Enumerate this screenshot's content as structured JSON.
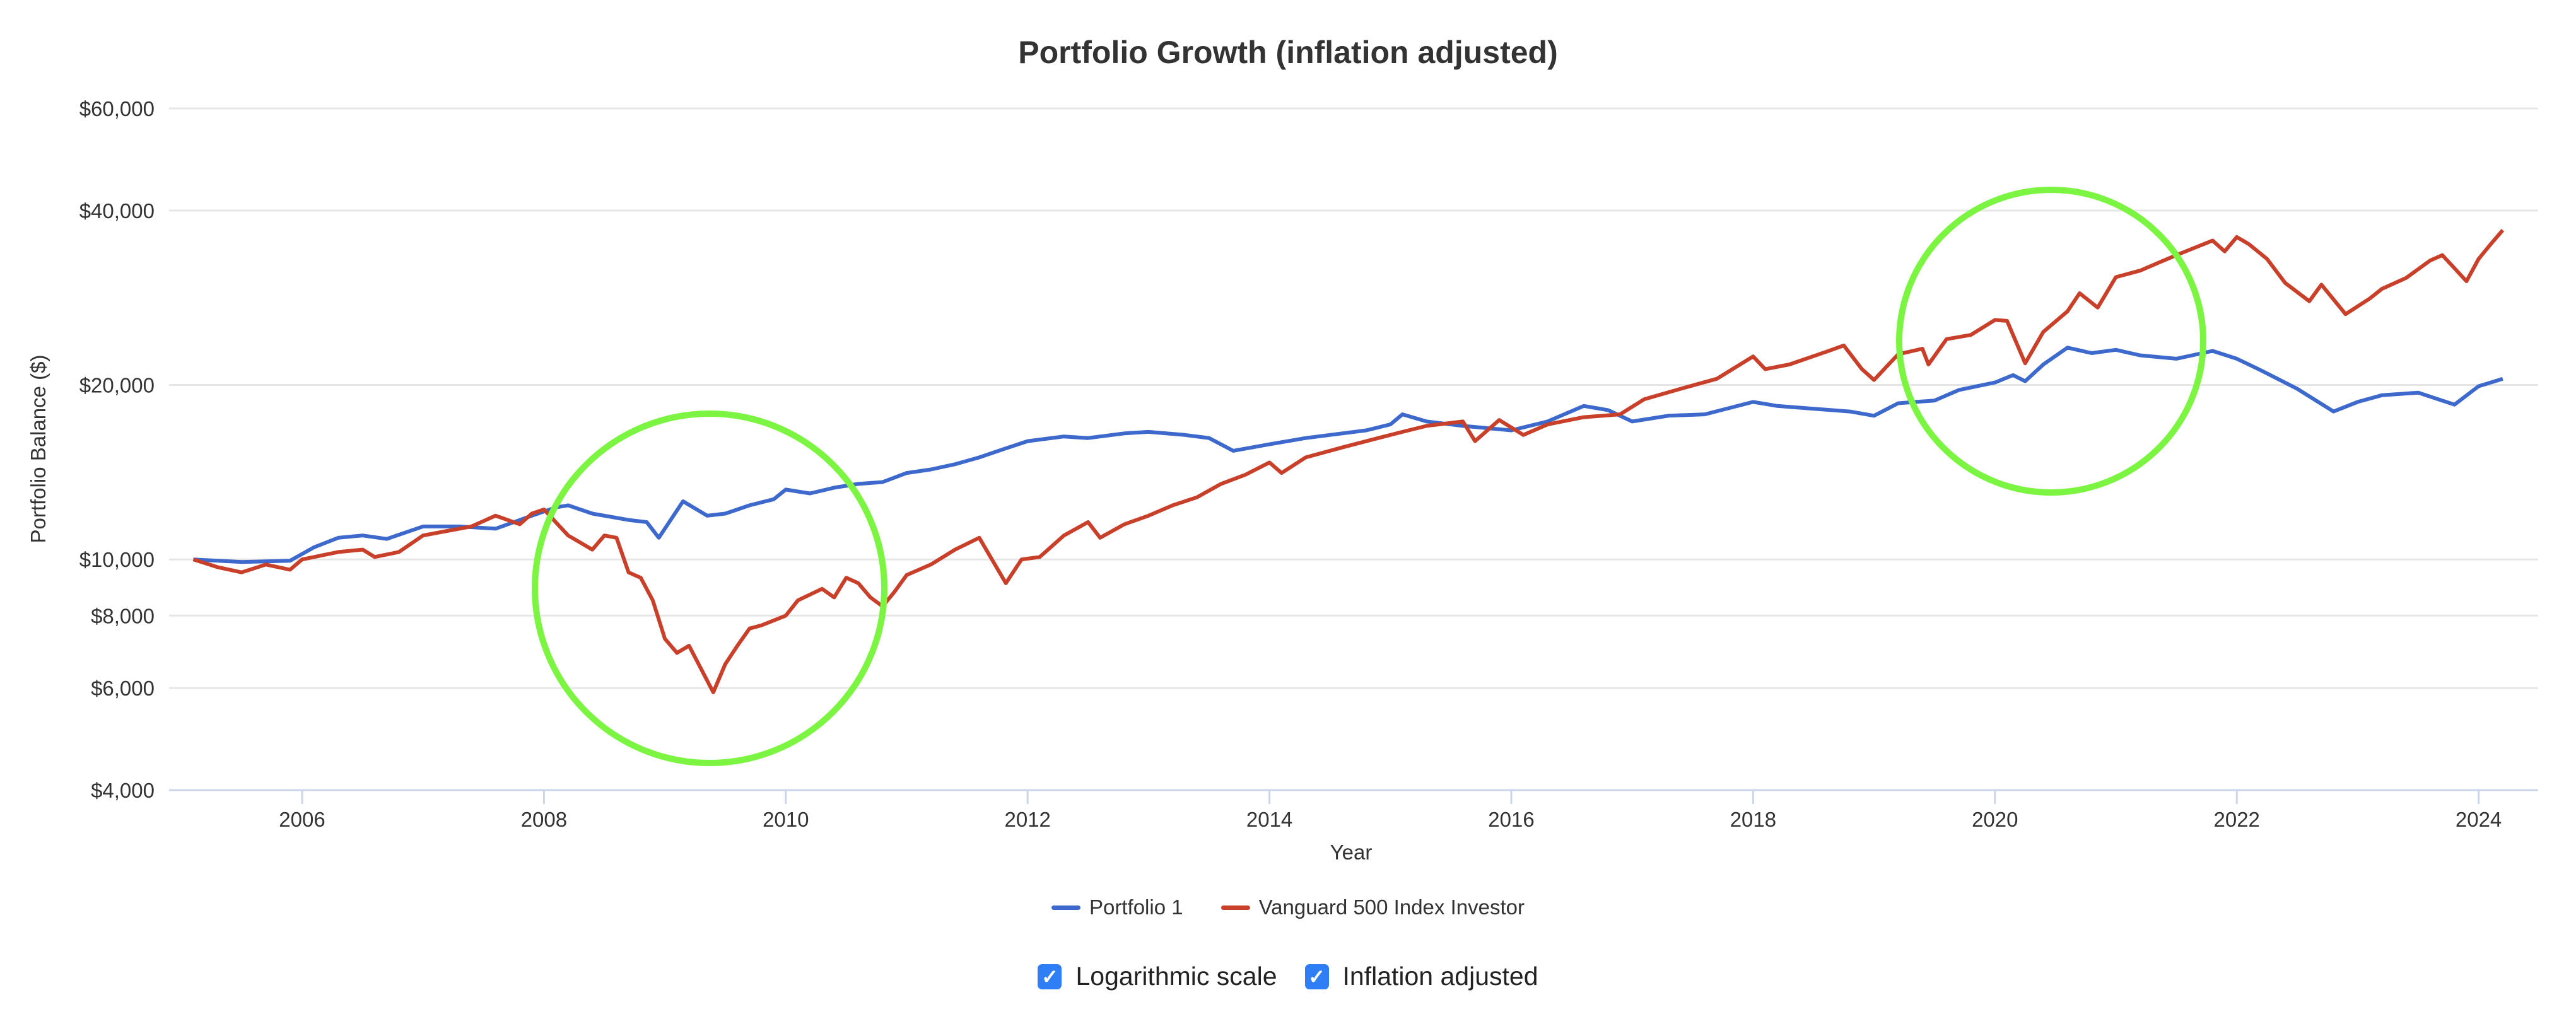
{
  "chart_data": {
    "type": "line",
    "title": "Portfolio Growth (inflation adjusted)",
    "xlabel": "Year",
    "ylabel": "Portfolio Balance ($)",
    "yscale": "log",
    "ylim": [
      4000,
      60000
    ],
    "xlim": [
      2004.9,
      2024.35
    ],
    "yticks": [
      4000,
      6000,
      8000,
      10000,
      20000,
      40000,
      60000
    ],
    "ytick_labels": [
      "$4,000",
      "$6,000",
      "$8,000",
      "$10,000",
      "$20,000",
      "$40,000",
      "$60,000"
    ],
    "xticks": [
      2006,
      2008,
      2010,
      2012,
      2014,
      2016,
      2018,
      2020,
      2022,
      2024
    ],
    "xtick_labels": [
      "2006",
      "2008",
      "2010",
      "2012",
      "2014",
      "2016",
      "2018",
      "2020",
      "2022",
      "2024"
    ],
    "grid": true,
    "legend_position": "bottom",
    "series": [
      {
        "name": "Portfolio 1",
        "color": "#3d68cc",
        "x": [
          2005.1,
          2005.5,
          2005.9,
          2006.1,
          2006.3,
          2006.5,
          2006.7,
          2007.0,
          2007.3,
          2007.6,
          2007.9,
          2008.1,
          2008.2,
          2008.4,
          2008.7,
          2008.85,
          2008.95,
          2009.15,
          2009.35,
          2009.5,
          2009.7,
          2009.9,
          2010.0,
          2010.2,
          2010.4,
          2010.6,
          2010.8,
          2011.0,
          2011.2,
          2011.4,
          2011.6,
          2011.8,
          2012.0,
          2012.3,
          2012.5,
          2012.8,
          2013.0,
          2013.3,
          2013.5,
          2013.7,
          2014.0,
          2014.3,
          2014.5,
          2014.8,
          2015.0,
          2015.1,
          2015.3,
          2015.6,
          2016.0,
          2016.3,
          2016.6,
          2016.8,
          2017.0,
          2017.3,
          2017.6,
          2018.0,
          2018.2,
          2018.5,
          2018.8,
          2019.0,
          2019.2,
          2019.5,
          2019.7,
          2020.0,
          2020.15,
          2020.25,
          2020.4,
          2020.6,
          2020.8,
          2021.0,
          2021.2,
          2021.5,
          2021.8,
          2022.0,
          2022.2,
          2022.5,
          2022.8,
          2023.0,
          2023.2,
          2023.5,
          2023.8,
          2024.0,
          2024.2
        ],
        "values": [
          10000,
          9900,
          9950,
          10500,
          10900,
          11000,
          10850,
          11400,
          11400,
          11300,
          11900,
          12300,
          12400,
          12000,
          11700,
          11600,
          10900,
          12600,
          11900,
          12000,
          12400,
          12700,
          13200,
          13000,
          13300,
          13500,
          13600,
          14100,
          14300,
          14600,
          15000,
          15500,
          16000,
          16300,
          16200,
          16500,
          16600,
          16400,
          16200,
          15400,
          15800,
          16200,
          16400,
          16700,
          17100,
          17800,
          17300,
          17000,
          16700,
          17300,
          18400,
          18100,
          17300,
          17700,
          17800,
          18700,
          18400,
          18200,
          18000,
          17700,
          18600,
          18800,
          19600,
          20200,
          20800,
          20300,
          21700,
          23200,
          22700,
          23000,
          22500,
          22200,
          22900,
          22200,
          21200,
          19700,
          18000,
          18700,
          19200,
          19400,
          18500,
          19900,
          20500
        ]
      },
      {
        "name": "Vanguard 500 Index Investor",
        "color": "#c9402a",
        "x": [
          2005.1,
          2005.3,
          2005.5,
          2005.7,
          2005.9,
          2006.0,
          2006.3,
          2006.5,
          2006.6,
          2006.8,
          2007.0,
          2007.2,
          2007.4,
          2007.6,
          2007.8,
          2007.9,
          2008.0,
          2008.2,
          2008.4,
          2008.5,
          2008.6,
          2008.7,
          2008.8,
          2008.9,
          2009.0,
          2009.1,
          2009.2,
          2009.4,
          2009.5,
          2009.6,
          2009.7,
          2009.8,
          2010.0,
          2010.1,
          2010.3,
          2010.4,
          2010.5,
          2010.6,
          2010.7,
          2010.8,
          2010.9,
          2011.0,
          2011.2,
          2011.4,
          2011.6,
          2011.82,
          2011.95,
          2012.1,
          2012.3,
          2012.5,
          2012.6,
          2012.8,
          2013.0,
          2013.2,
          2013.4,
          2013.6,
          2013.8,
          2014.0,
          2014.1,
          2014.3,
          2014.6,
          2014.9,
          2015.1,
          2015.3,
          2015.6,
          2015.7,
          2015.9,
          2016.1,
          2016.3,
          2016.6,
          2016.9,
          2017.1,
          2017.4,
          2017.7,
          2018.0,
          2018.1,
          2018.3,
          2018.6,
          2018.75,
          2018.9,
          2019.0,
          2019.2,
          2019.4,
          2019.45,
          2019.6,
          2019.8,
          2020.0,
          2020.1,
          2020.25,
          2020.4,
          2020.6,
          2020.7,
          2020.85,
          2021.0,
          2021.2,
          2021.5,
          2021.8,
          2021.9,
          2022.0,
          2022.1,
          2022.25,
          2022.4,
          2022.6,
          2022.7,
          2022.9,
          2023.1,
          2023.2,
          2023.4,
          2023.6,
          2023.7,
          2023.9,
          2024.0,
          2024.1,
          2024.2
        ],
        "values": [
          10000,
          9700,
          9500,
          9800,
          9600,
          10000,
          10300,
          10400,
          10100,
          10300,
          11000,
          11200,
          11400,
          11900,
          11500,
          12000,
          12200,
          11000,
          10400,
          11000,
          10900,
          9500,
          9300,
          8500,
          7300,
          6900,
          7100,
          5900,
          6600,
          7100,
          7600,
          7700,
          8000,
          8500,
          8900,
          8600,
          9300,
          9100,
          8600,
          8300,
          8800,
          9400,
          9800,
          10400,
          10900,
          9100,
          10000,
          10100,
          11000,
          11600,
          10900,
          11500,
          11900,
          12400,
          12800,
          13500,
          14000,
          14700,
          14100,
          15000,
          15600,
          16200,
          16600,
          17000,
          17300,
          16000,
          17400,
          16400,
          17100,
          17600,
          17800,
          18900,
          19700,
          20500,
          22400,
          21300,
          21700,
          22800,
          23400,
          21300,
          20400,
          22600,
          23100,
          21700,
          24000,
          24400,
          25900,
          25800,
          21800,
          24700,
          26800,
          28800,
          27200,
          30700,
          31500,
          33500,
          35500,
          34000,
          36000,
          35000,
          33000,
          30000,
          27900,
          29800,
          26500,
          28200,
          29300,
          30600,
          32800,
          33500,
          30200,
          33000,
          35000,
          37000
        ]
      }
    ]
  },
  "controls": {
    "log_scale": {
      "label": "Logarithmic scale",
      "checked": true
    },
    "inflation_adjusted": {
      "label": "Inflation adjusted",
      "checked": true
    }
  },
  "annotation_color": "#7cf542"
}
